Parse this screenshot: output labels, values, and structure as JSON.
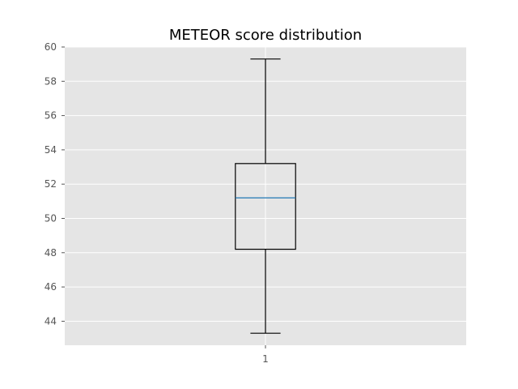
{
  "chart_data": {
    "type": "box",
    "title": "METEOR score distribution",
    "xlabel": "",
    "ylabel": "",
    "categories": [
      "1"
    ],
    "boxes": [
      {
        "category": "1",
        "min": 43.3,
        "q1": 48.2,
        "median": 51.2,
        "q3": 53.2,
        "max": 59.3
      }
    ],
    "ylim": [
      42.6,
      60.0
    ],
    "yticks": [
      44,
      46,
      48,
      50,
      52,
      54,
      56,
      58,
      60
    ],
    "grid": true,
    "style": {
      "plot_background": "#e5e5e5",
      "grid_color": "#ffffff",
      "box_color": "#000000",
      "median_color": "#1f77b4",
      "tick_label_color": "#555555"
    }
  }
}
